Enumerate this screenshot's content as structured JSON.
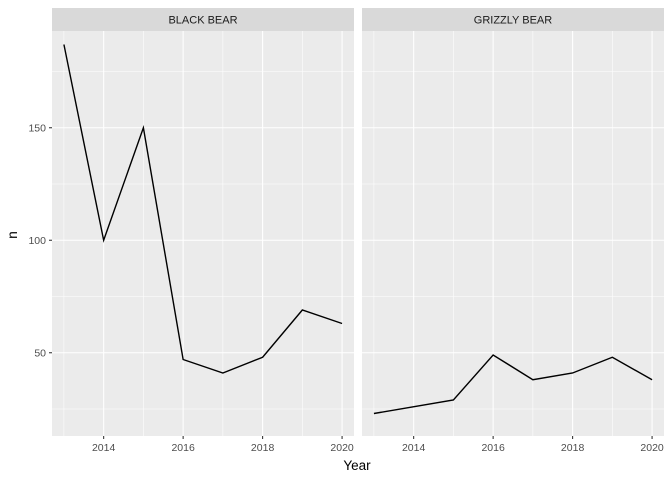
{
  "chart_data": {
    "type": "line",
    "xlabel": "Year",
    "ylabel": "n",
    "xlim": [
      2012.7,
      2020.3
    ],
    "ylim": [
      13,
      193
    ],
    "x_ticks": [
      2014,
      2016,
      2018,
      2020
    ],
    "x_ticks_labels": [
      "2014",
      "2016",
      "2018",
      "2020"
    ],
    "y_ticks": [
      50,
      100,
      150
    ],
    "y_ticks_labels": [
      "50",
      "100",
      "150"
    ],
    "y_minor_ticks": [
      25,
      75,
      125,
      175
    ],
    "x_minor_ticks": [
      2013,
      2015,
      2017,
      2019
    ],
    "grid": true,
    "line_color": "#000000",
    "panels": [
      {
        "label": "BLACK BEAR",
        "x": [
          2013,
          2014,
          2015,
          2016,
          2017,
          2018,
          2019,
          2020
        ],
        "y": [
          187,
          100,
          150,
          47,
          41,
          48,
          69,
          63
        ]
      },
      {
        "label": "GRIZZLY BEAR",
        "x": [
          2013,
          2015,
          2016,
          2017,
          2018,
          2019,
          2020
        ],
        "y": [
          23,
          29,
          49,
          38,
          41,
          48,
          38
        ]
      }
    ]
  }
}
